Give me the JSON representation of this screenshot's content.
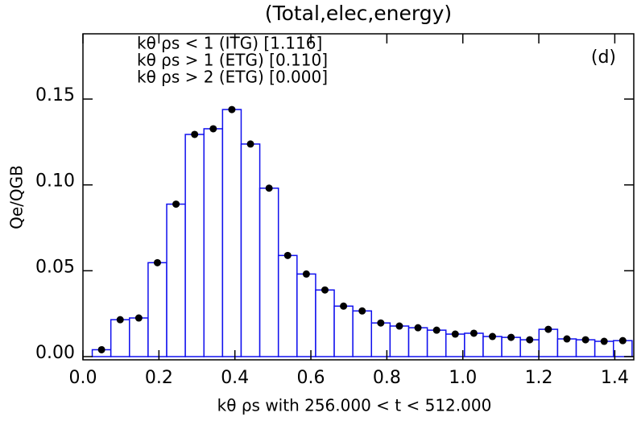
{
  "chart_data": {
    "type": "bar",
    "title": "(Total,elec,energy)",
    "annotation": "(d)",
    "legend_lines": [
      "kθ ρs < 1 (ITG) [1.116]",
      "kθ ρs > 1 (ETG) [0.110]",
      "kθ ρs > 2 (ETG) [0.000]"
    ],
    "x_label": "kθ ρs with  256.000 < t < 512.000",
    "y_label": "Qe/QGB",
    "x": [
      0.049,
      0.098,
      0.147,
      0.196,
      0.245,
      0.294,
      0.343,
      0.392,
      0.441,
      0.49,
      0.539,
      0.588,
      0.637,
      0.686,
      0.735,
      0.784,
      0.833,
      0.882,
      0.931,
      0.98,
      1.029,
      1.078,
      1.127,
      1.176,
      1.225,
      1.274,
      1.323,
      1.372,
      1.421
    ],
    "values": [
      0.004,
      0.0215,
      0.0225,
      0.0547,
      0.0888,
      0.1294,
      0.1327,
      0.1439,
      0.1238,
      0.0981,
      0.0589,
      0.0481,
      0.0388,
      0.0294,
      0.0266,
      0.0196,
      0.0178,
      0.0168,
      0.0154,
      0.0131,
      0.0136,
      0.0117,
      0.0112,
      0.0098,
      0.0159,
      0.0103,
      0.0098,
      0.0089,
      0.0093
    ],
    "color": "#1010ee",
    "marker_color": "#000000",
    "xlim": [
      0,
      1.45
    ],
    "ylim": [
      0,
      0.188
    ],
    "xticks": [
      {
        "value": 0,
        "label": "0.0"
      },
      {
        "value": 0.2,
        "label": "0.2"
      },
      {
        "value": 0.4,
        "label": "0.4"
      },
      {
        "value": 0.6,
        "label": "0.6"
      },
      {
        "value": 0.8,
        "label": "0.8"
      },
      {
        "value": 1,
        "label": "1.0"
      },
      {
        "value": 1.2,
        "label": "1.2"
      },
      {
        "value": 1.4,
        "label": "1.4"
      }
    ],
    "yticks": [
      {
        "value": 0,
        "label": "0.00"
      },
      {
        "value": 0.05,
        "label": "0.05"
      },
      {
        "value": 0.1,
        "label": "0.10"
      },
      {
        "value": 0.15,
        "label": "0.15"
      }
    ],
    "grid": false
  }
}
